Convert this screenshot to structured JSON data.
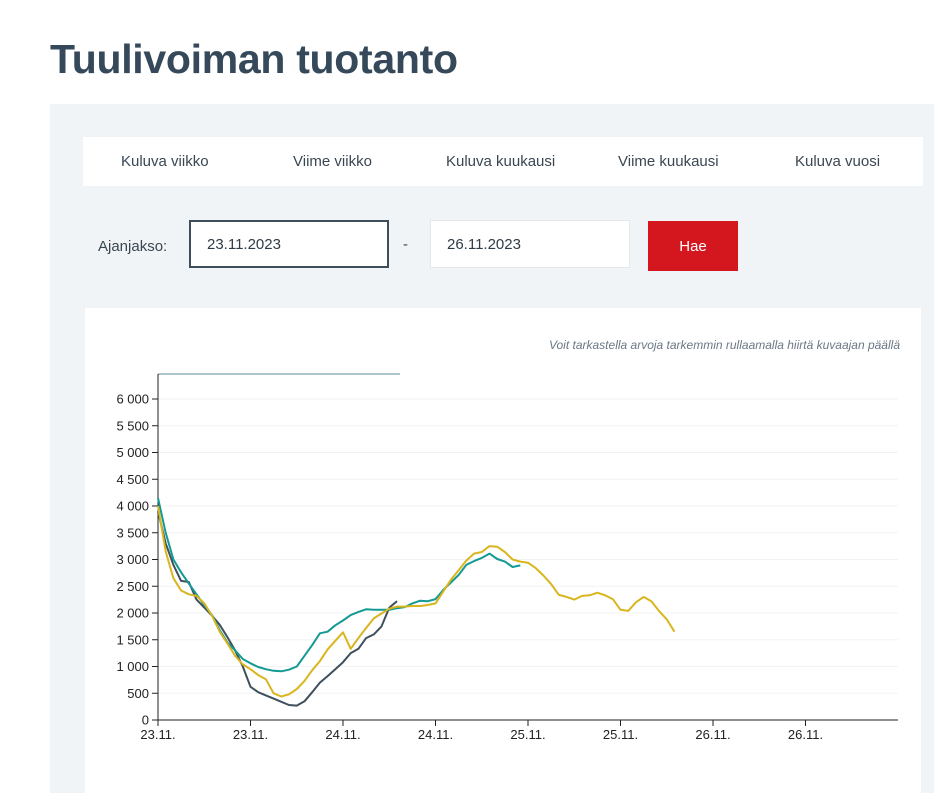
{
  "page": {
    "title": "Tuulivoiman tuotanto"
  },
  "tabs": [
    {
      "label": "Kuluva viikko"
    },
    {
      "label": "Viime viikko"
    },
    {
      "label": "Kuluva kuukausi"
    },
    {
      "label": "Viime kuukausi"
    },
    {
      "label": "Kuluva vuosi"
    }
  ],
  "date_range": {
    "label": "Ajanjakso:",
    "start_value": "23.11.2023",
    "separator": "-",
    "end_value": "26.11.2023",
    "submit_label": "Hae"
  },
  "chart_hint": "Voit tarkastella arvoja tarkemmin rullaamalla hiirtä kuvaajan päällä",
  "colors": {
    "accent": "#d4161f",
    "title": "#35495a",
    "panel": "#f1f4f7"
  },
  "chart_data": {
    "type": "line",
    "title": "",
    "xlabel": "",
    "ylabel": "",
    "ylim": [
      0,
      6000
    ],
    "xlim": [
      0,
      96
    ],
    "yticks": [
      0,
      500,
      1000,
      1500,
      2000,
      2500,
      3000,
      3500,
      4000,
      4500,
      5000,
      5500,
      6000
    ],
    "ytick_labels": [
      "0",
      "500",
      "1 000",
      "1 500",
      "2 000",
      "2 500",
      "3 000",
      "3 500",
      "4 000",
      "4 500",
      "5 000",
      "5 500",
      "6 000"
    ],
    "xticks": [
      0,
      12,
      24,
      36,
      48,
      60,
      72,
      84
    ],
    "xtick_labels": [
      "23.11.",
      "23.11.",
      "24.11.",
      "24.11.",
      "25.11.",
      "25.11.",
      "26.11.",
      "26.11."
    ],
    "grid": true,
    "legend": "none",
    "series": [
      {
        "color": "#3f4f5c",
        "points": [
          [
            0,
            3900
          ],
          [
            1,
            3300
          ],
          [
            2,
            2900
          ],
          [
            3,
            2600
          ],
          [
            4,
            2580
          ],
          [
            5,
            2250
          ],
          [
            6,
            2100
          ],
          [
            7,
            1950
          ],
          [
            8,
            1780
          ],
          [
            9,
            1550
          ],
          [
            10,
            1300
          ],
          [
            11,
            1000
          ],
          [
            12,
            620
          ],
          [
            13,
            520
          ],
          [
            14,
            460
          ],
          [
            15,
            400
          ],
          [
            16,
            340
          ],
          [
            17,
            280
          ],
          [
            18,
            270
          ],
          [
            19,
            350
          ],
          [
            20,
            520
          ],
          [
            21,
            700
          ],
          [
            22,
            820
          ],
          [
            23,
            950
          ],
          [
            24,
            1080
          ],
          [
            25,
            1250
          ],
          [
            26,
            1330
          ],
          [
            27,
            1530
          ],
          [
            28,
            1600
          ],
          [
            29,
            1750
          ],
          [
            30,
            2100
          ],
          [
            31,
            2220
          ]
        ]
      },
      {
        "color": "#139a93",
        "points": [
          [
            0,
            4150
          ],
          [
            1,
            3500
          ],
          [
            2,
            3000
          ],
          [
            3,
            2760
          ],
          [
            4,
            2550
          ],
          [
            5,
            2350
          ],
          [
            6,
            2150
          ],
          [
            7,
            1960
          ],
          [
            8,
            1680
          ],
          [
            9,
            1450
          ],
          [
            10,
            1300
          ],
          [
            11,
            1140
          ],
          [
            12,
            1060
          ],
          [
            13,
            990
          ],
          [
            14,
            950
          ],
          [
            15,
            920
          ],
          [
            16,
            910
          ],
          [
            17,
            940
          ],
          [
            18,
            1000
          ],
          [
            19,
            1200
          ],
          [
            20,
            1400
          ],
          [
            21,
            1620
          ],
          [
            22,
            1650
          ],
          [
            23,
            1770
          ],
          [
            24,
            1860
          ],
          [
            25,
            1960
          ],
          [
            26,
            2020
          ],
          [
            27,
            2070
          ],
          [
            28,
            2060
          ],
          [
            29,
            2060
          ],
          [
            30,
            2060
          ],
          [
            31,
            2090
          ],
          [
            32,
            2110
          ],
          [
            33,
            2180
          ],
          [
            34,
            2230
          ],
          [
            35,
            2220
          ],
          [
            36,
            2260
          ],
          [
            37,
            2430
          ],
          [
            38,
            2570
          ],
          [
            39,
            2710
          ],
          [
            40,
            2900
          ],
          [
            41,
            2970
          ],
          [
            42,
            3030
          ],
          [
            43,
            3110
          ],
          [
            44,
            3010
          ],
          [
            45,
            2960
          ],
          [
            46,
            2860
          ],
          [
            47,
            2890
          ]
        ]
      },
      {
        "color": "#d9b51e",
        "points": [
          [
            0,
            4000
          ],
          [
            1,
            3150
          ],
          [
            2,
            2650
          ],
          [
            3,
            2420
          ],
          [
            4,
            2350
          ],
          [
            5,
            2320
          ],
          [
            6,
            2180
          ],
          [
            7,
            1950
          ],
          [
            8,
            1650
          ],
          [
            9,
            1430
          ],
          [
            10,
            1200
          ],
          [
            11,
            1040
          ],
          [
            12,
            950
          ],
          [
            13,
            840
          ],
          [
            14,
            760
          ],
          [
            15,
            500
          ],
          [
            16,
            440
          ],
          [
            17,
            480
          ],
          [
            18,
            580
          ],
          [
            19,
            730
          ],
          [
            20,
            930
          ],
          [
            21,
            1100
          ],
          [
            22,
            1320
          ],
          [
            23,
            1480
          ],
          [
            24,
            1640
          ],
          [
            25,
            1330
          ],
          [
            26,
            1530
          ],
          [
            27,
            1720
          ],
          [
            28,
            1900
          ],
          [
            29,
            1990
          ],
          [
            30,
            2080
          ],
          [
            31,
            2120
          ],
          [
            32,
            2120
          ],
          [
            33,
            2130
          ],
          [
            34,
            2130
          ],
          [
            35,
            2150
          ],
          [
            36,
            2180
          ],
          [
            37,
            2400
          ],
          [
            38,
            2620
          ],
          [
            39,
            2800
          ],
          [
            40,
            2980
          ],
          [
            41,
            3110
          ],
          [
            42,
            3140
          ],
          [
            43,
            3250
          ],
          [
            44,
            3240
          ],
          [
            45,
            3140
          ],
          [
            46,
            3000
          ],
          [
            47,
            2960
          ],
          [
            48,
            2940
          ],
          [
            49,
            2840
          ],
          [
            50,
            2700
          ],
          [
            51,
            2540
          ],
          [
            52,
            2340
          ],
          [
            53,
            2300
          ],
          [
            54,
            2250
          ],
          [
            55,
            2320
          ],
          [
            56,
            2330
          ],
          [
            57,
            2380
          ],
          [
            58,
            2330
          ],
          [
            59,
            2260
          ],
          [
            60,
            2060
          ],
          [
            61,
            2040
          ],
          [
            62,
            2200
          ],
          [
            63,
            2300
          ],
          [
            64,
            2220
          ],
          [
            65,
            2040
          ],
          [
            66,
            1880
          ],
          [
            67,
            1650
          ]
        ]
      }
    ]
  }
}
